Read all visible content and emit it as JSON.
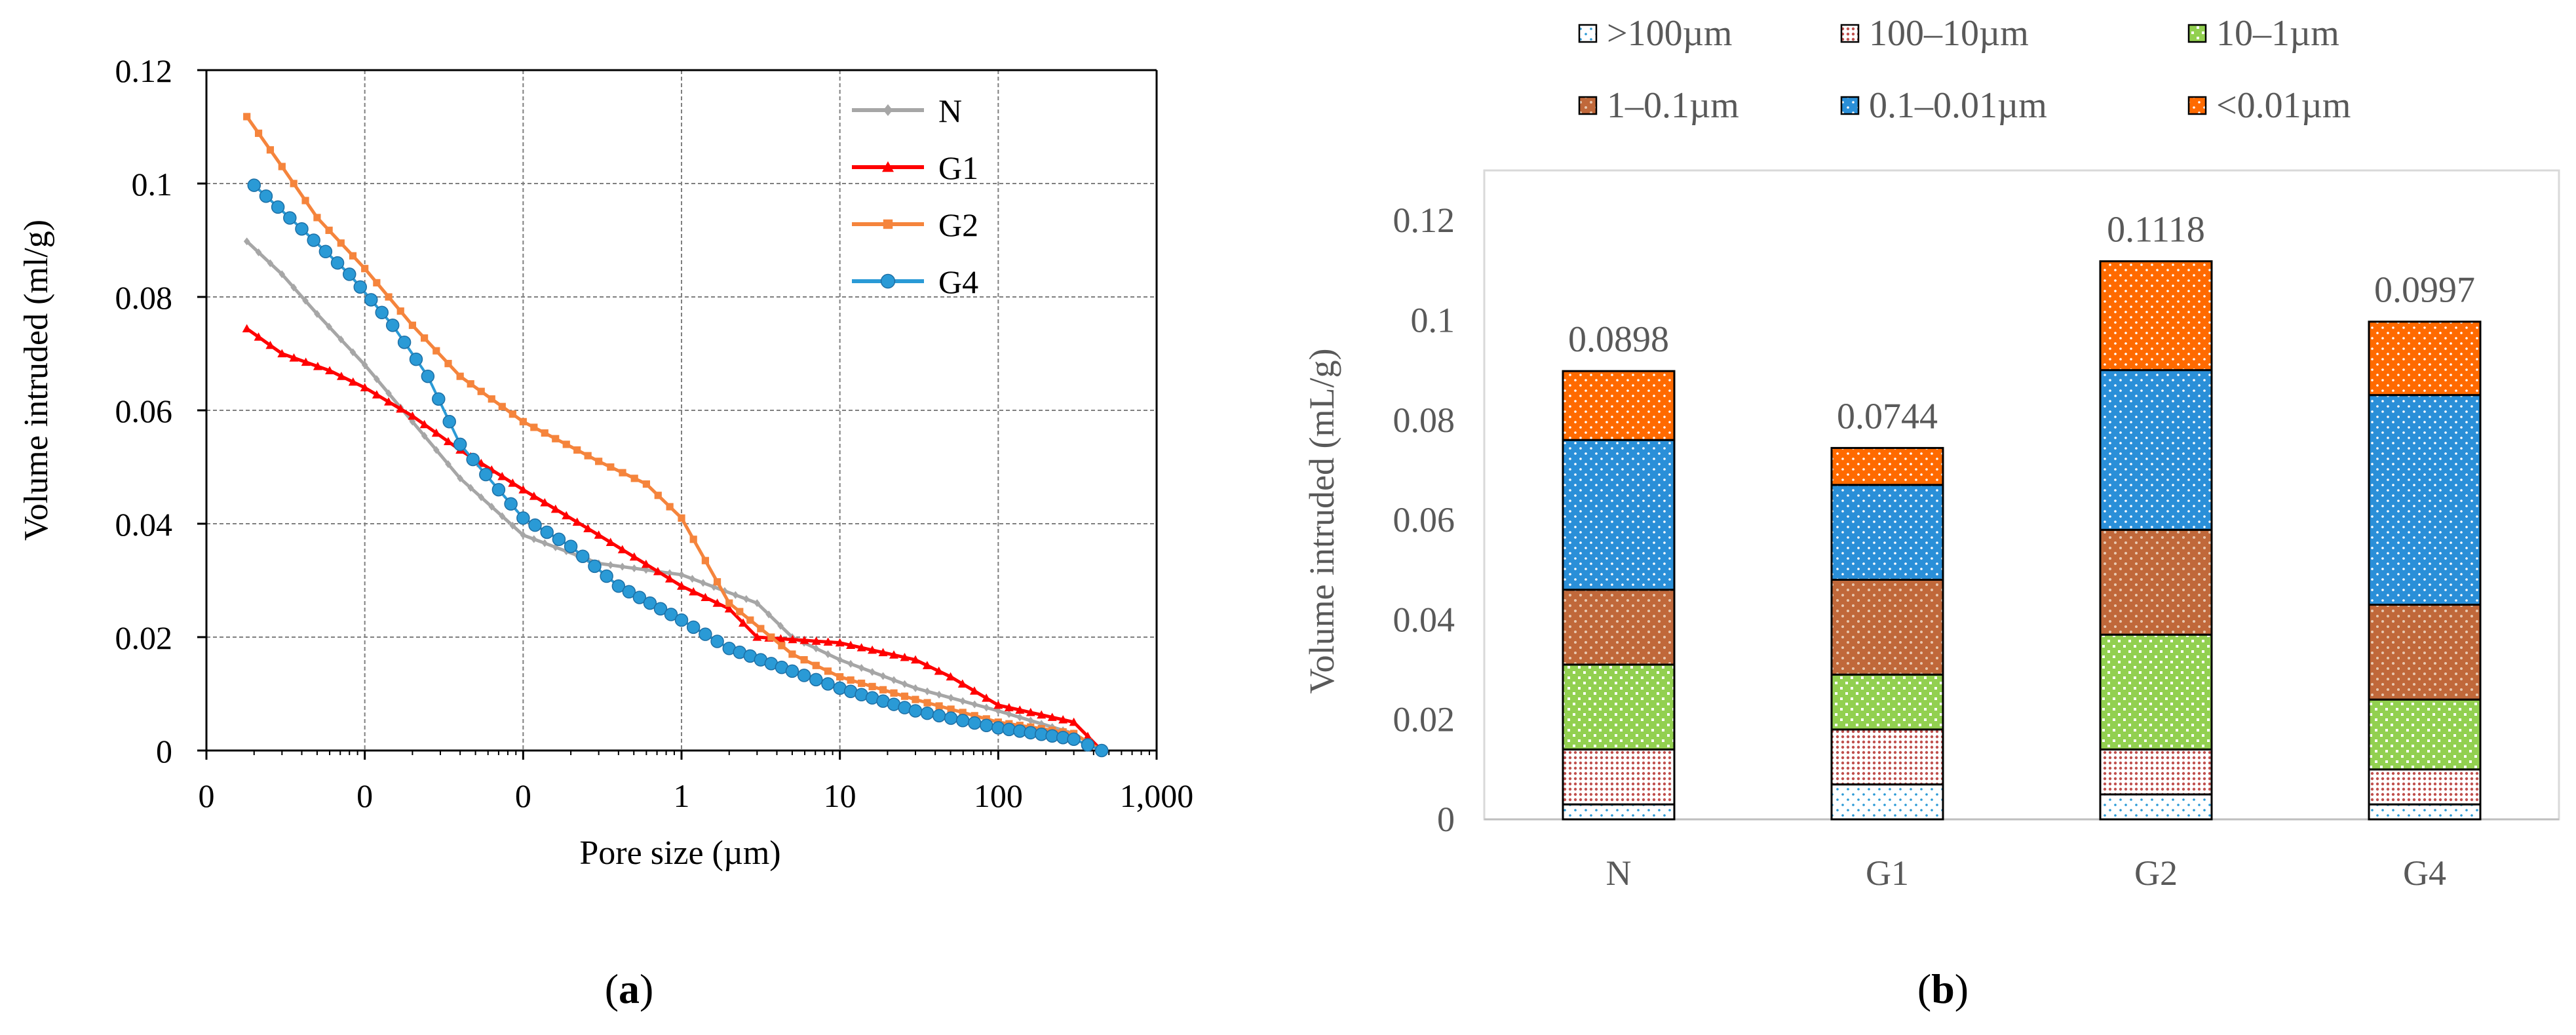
{
  "panel_a_caption": "a",
  "panel_b_caption": "b",
  "colors": {
    "N": "#a6a6a6",
    "G1": "#ff0000",
    "G2": "#f5843c",
    "G4": "#2a9ad6",
    "axis": "#000000",
    "grid": "#7f7f7f",
    "text": "#000000",
    "text_b": "#595959",
    "seg_gt100": "#2a9ad6",
    "seg_100_10": "#c0504d",
    "seg_10_1": "#92d050",
    "seg_1_01": "#c0683a",
    "seg_01_001": "#2a8fd8",
    "seg_lt001": "#ff6a00"
  },
  "chart_data": [
    {
      "type": "line",
      "title": "",
      "xlabel": "Pore size (µm)",
      "ylabel": "Volume intruded (ml/g)",
      "xscale": "log",
      "xlim": [
        0.001,
        1000
      ],
      "ylim": [
        0,
        0.12
      ],
      "x_tick_labels": [
        "0",
        "0",
        "0",
        "1",
        "10",
        "100",
        "1,000"
      ],
      "y_tick_labels": [
        "0",
        "0.02",
        "0.04",
        "0.06",
        "0.08",
        "0.1",
        "0.12"
      ],
      "legend_position": "top-right",
      "series": [
        {
          "name": "N",
          "marker": "diamond",
          "points": [
            [
              0.0018,
              0.0898
            ],
            [
              0.003,
              0.084
            ],
            [
              0.005,
              0.077
            ],
            [
              0.01,
              0.068
            ],
            [
              0.02,
              0.058
            ],
            [
              0.04,
              0.048
            ],
            [
              0.1,
              0.038
            ],
            [
              0.3,
              0.033
            ],
            [
              1,
              0.031
            ],
            [
              3,
              0.026
            ],
            [
              5,
              0.02
            ],
            [
              10,
              0.016
            ],
            [
              30,
              0.011
            ],
            [
              100,
              0.007
            ],
            [
              300,
              0.003
            ],
            [
              450,
              0.0
            ]
          ]
        },
        {
          "name": "G1",
          "marker": "triangle",
          "points": [
            [
              0.0018,
              0.0744
            ],
            [
              0.003,
              0.07
            ],
            [
              0.006,
              0.067
            ],
            [
              0.01,
              0.064
            ],
            [
              0.02,
              0.059
            ],
            [
              0.04,
              0.053
            ],
            [
              0.1,
              0.046
            ],
            [
              0.3,
              0.038
            ],
            [
              1,
              0.029
            ],
            [
              2,
              0.025
            ],
            [
              3,
              0.02
            ],
            [
              10,
              0.019
            ],
            [
              30,
              0.016
            ],
            [
              50,
              0.013
            ],
            [
              100,
              0.008
            ],
            [
              300,
              0.005
            ],
            [
              450,
              0.0
            ]
          ]
        },
        {
          "name": "G2",
          "marker": "square",
          "points": [
            [
              0.0018,
              0.1118
            ],
            [
              0.003,
              0.103
            ],
            [
              0.005,
              0.094
            ],
            [
              0.01,
              0.085
            ],
            [
              0.02,
              0.075
            ],
            [
              0.04,
              0.066
            ],
            [
              0.1,
              0.058
            ],
            [
              0.3,
              0.051
            ],
            [
              0.6,
              0.047
            ],
            [
              1,
              0.041
            ],
            [
              2,
              0.026
            ],
            [
              5,
              0.017
            ],
            [
              10,
              0.013
            ],
            [
              30,
              0.009
            ],
            [
              100,
              0.005
            ],
            [
              300,
              0.003
            ],
            [
              450,
              0.0
            ]
          ]
        },
        {
          "name": "G4",
          "marker": "circle",
          "points": [
            [
              0.002,
              0.0997
            ],
            [
              0.004,
              0.092
            ],
            [
              0.008,
              0.084
            ],
            [
              0.015,
              0.075
            ],
            [
              0.025,
              0.066
            ],
            [
              0.04,
              0.054
            ],
            [
              0.07,
              0.046
            ],
            [
              0.1,
              0.041
            ],
            [
              0.2,
              0.036
            ],
            [
              0.4,
              0.029
            ],
            [
              1,
              0.023
            ],
            [
              2,
              0.018
            ],
            [
              5,
              0.014
            ],
            [
              10,
              0.011
            ],
            [
              30,
              0.007
            ],
            [
              100,
              0.004
            ],
            [
              300,
              0.002
            ],
            [
              450,
              0.0
            ]
          ]
        }
      ]
    },
    {
      "type": "bar",
      "stacked": true,
      "title": "",
      "xlabel": "",
      "ylabel": "Volume intruded (mL/g)",
      "ylim": [
        0,
        0.13
      ],
      "y_tick_labels": [
        "0",
        "0.02",
        "0.04",
        "0.06",
        "0.08",
        "0.1",
        "0.12"
      ],
      "legend_position": "top",
      "categories": [
        "N",
        "G1",
        "G2",
        "G4"
      ],
      "totals": [
        0.0898,
        0.0744,
        0.1118,
        0.0997
      ],
      "total_labels": [
        "0.0898",
        "0.0744",
        "0.1118",
        "0.0997"
      ],
      "series": [
        {
          "name": ">100µm",
          "values": [
            0.003,
            0.007,
            0.005,
            0.003
          ]
        },
        {
          "name": "100–10µm",
          "values": [
            0.011,
            0.011,
            0.009,
            0.007
          ]
        },
        {
          "name": "10–1µm",
          "values": [
            0.017,
            0.011,
            0.023,
            0.014
          ]
        },
        {
          "name": "1–0.1µm",
          "values": [
            0.015,
            0.019,
            0.021,
            0.019
          ]
        },
        {
          "name": "0.1–0.01µm",
          "values": [
            0.03,
            0.019,
            0.032,
            0.042
          ]
        },
        {
          "name": "<0.01µm",
          "values": [
            0.0138,
            0.0074,
            0.0218,
            0.0147
          ]
        }
      ]
    }
  ]
}
